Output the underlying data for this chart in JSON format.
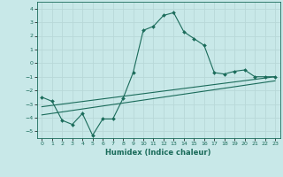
{
  "xlabel": "Humidex (Indice chaleur)",
  "bg_color": "#c8e8e8",
  "grid_color": "#b8d8d8",
  "line_color": "#1a6b5a",
  "xlim": [
    -0.5,
    23.5
  ],
  "ylim": [
    -5.5,
    4.5
  ],
  "xticks": [
    0,
    1,
    2,
    3,
    4,
    5,
    6,
    7,
    8,
    9,
    10,
    11,
    12,
    13,
    14,
    15,
    16,
    17,
    18,
    19,
    20,
    21,
    22,
    23
  ],
  "yticks": [
    -5,
    -4,
    -3,
    -2,
    -1,
    0,
    1,
    2,
    3,
    4
  ],
  "curve1_x": [
    0,
    1,
    2,
    3,
    4,
    5,
    6,
    7,
    8,
    9,
    10,
    11,
    12,
    13,
    14,
    15,
    16,
    17,
    18,
    19,
    20,
    21,
    22,
    23
  ],
  "curve1_y": [
    -2.5,
    -2.8,
    -4.2,
    -4.5,
    -3.7,
    -5.3,
    -4.1,
    -4.1,
    -2.6,
    -0.7,
    2.4,
    2.7,
    3.5,
    3.7,
    2.3,
    1.8,
    1.3,
    -0.7,
    -0.8,
    -0.6,
    -0.5,
    -1.0,
    -1.0,
    -1.0
  ],
  "line2_x": [
    0,
    23
  ],
  "line2_y": [
    -3.2,
    -1.0
  ],
  "line3_x": [
    0,
    23
  ],
  "line3_y": [
    -3.8,
    -1.3
  ]
}
